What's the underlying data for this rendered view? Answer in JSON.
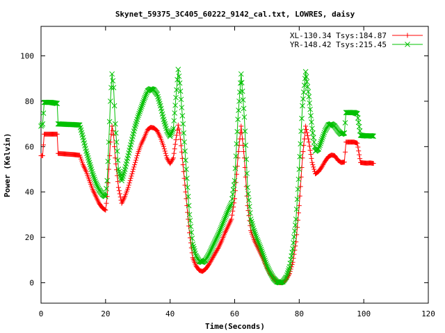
{
  "chart_data": {
    "type": "line",
    "title": "Skynet_59375_3C405_60222_9142_cal.txt, LOWRES, daisy",
    "xlabel": "Time(Seconds)",
    "ylabel": "Power (Kelvin)",
    "xlim": [
      0,
      120
    ],
    "ylim": [
      -9,
      113
    ],
    "xticks": [
      0,
      20,
      40,
      60,
      80,
      100,
      120
    ],
    "yticks": [
      0,
      20,
      40,
      60,
      80,
      100
    ],
    "grid": false,
    "legend_position": "top-right",
    "series": [
      {
        "name": "XL-130.34 Tsys:184.87",
        "color": "#ff0000",
        "marker": "plus",
        "points": [
          [
            0,
            56
          ],
          [
            0.5,
            56
          ],
          [
            1,
            65.5
          ],
          [
            3,
            65.5
          ],
          [
            5,
            65.5
          ],
          [
            5.3,
            57
          ],
          [
            8,
            56.7
          ],
          [
            10,
            56.5
          ],
          [
            12,
            56.2
          ],
          [
            13,
            52
          ],
          [
            14,
            49
          ],
          [
            15,
            45
          ],
          [
            16,
            41
          ],
          [
            17,
            38
          ],
          [
            18,
            35
          ],
          [
            19,
            33
          ],
          [
            20,
            32
          ],
          [
            20.5,
            38
          ],
          [
            21,
            50
          ],
          [
            21.5,
            62
          ],
          [
            22,
            69
          ],
          [
            22.5,
            65
          ],
          [
            23,
            55
          ],
          [
            24,
            42
          ],
          [
            25,
            35
          ],
          [
            26,
            38
          ],
          [
            27,
            42
          ],
          [
            28,
            47
          ],
          [
            29,
            52
          ],
          [
            30,
            57
          ],
          [
            31,
            61
          ],
          [
            32,
            64
          ],
          [
            33,
            67.5
          ],
          [
            34,
            68.5
          ],
          [
            35,
            68.2
          ],
          [
            36,
            67
          ],
          [
            37,
            64
          ],
          [
            38,
            60
          ],
          [
            39,
            55
          ],
          [
            40,
            52.5
          ],
          [
            41,
            55
          ],
          [
            42,
            65
          ],
          [
            42.5,
            69.5
          ],
          [
            43,
            66
          ],
          [
            44,
            52
          ],
          [
            45,
            37
          ],
          [
            46,
            22
          ],
          [
            47,
            11
          ],
          [
            48,
            7.5
          ],
          [
            49,
            5.5
          ],
          [
            50,
            5
          ],
          [
            51,
            6
          ],
          [
            52,
            8
          ],
          [
            53,
            10.5
          ],
          [
            54,
            13
          ],
          [
            55,
            15.5
          ],
          [
            56,
            18.5
          ],
          [
            57,
            22
          ],
          [
            58,
            25
          ],
          [
            59,
            28
          ],
          [
            60,
            37
          ],
          [
            61,
            55
          ],
          [
            62,
            69
          ],
          [
            63,
            55
          ],
          [
            64,
            34
          ],
          [
            65,
            23
          ],
          [
            66,
            19
          ],
          [
            67,
            16
          ],
          [
            68,
            13
          ],
          [
            69,
            10
          ],
          [
            70,
            6.5
          ],
          [
            71,
            4
          ],
          [
            72,
            2
          ],
          [
            73,
            0.5
          ],
          [
            74,
            0
          ],
          [
            75,
            0.2
          ],
          [
            76,
            1.5
          ],
          [
            77,
            4
          ],
          [
            78,
            9
          ],
          [
            79,
            18
          ],
          [
            80,
            34
          ],
          [
            81,
            55
          ],
          [
            82,
            69
          ],
          [
            83,
            62
          ],
          [
            84,
            53
          ],
          [
            85,
            48
          ],
          [
            86,
            49
          ],
          [
            87,
            51
          ],
          [
            88,
            53.5
          ],
          [
            89,
            55.5
          ],
          [
            90,
            56.3
          ],
          [
            91,
            56
          ],
          [
            92,
            54
          ],
          [
            93,
            53
          ],
          [
            94,
            53.2
          ],
          [
            94.5,
            62
          ],
          [
            95,
            62
          ],
          [
            96,
            62
          ],
          [
            97,
            62
          ],
          [
            98,
            61.5
          ],
          [
            99,
            53
          ],
          [
            100,
            52.8
          ],
          [
            101,
            52.7
          ],
          [
            102,
            52.8
          ],
          [
            103,
            52.6
          ]
        ]
      },
      {
        "name": "YR-148.42 Tsys:215.45",
        "color": "#00c000",
        "marker": "cross",
        "points": [
          [
            0,
            69
          ],
          [
            0.5,
            70
          ],
          [
            1,
            79.5
          ],
          [
            3,
            79.5
          ],
          [
            5,
            79
          ],
          [
            5.3,
            70
          ],
          [
            8,
            69.8
          ],
          [
            10,
            69.7
          ],
          [
            12,
            69.5
          ],
          [
            13,
            64
          ],
          [
            14,
            58
          ],
          [
            15,
            53
          ],
          [
            16,
            48
          ],
          [
            17,
            44
          ],
          [
            18,
            41
          ],
          [
            19,
            39
          ],
          [
            20,
            38
          ],
          [
            20.5,
            45
          ],
          [
            21,
            62
          ],
          [
            21.5,
            80
          ],
          [
            22,
            92
          ],
          [
            22.5,
            86
          ],
          [
            23,
            70
          ],
          [
            24,
            50
          ],
          [
            25,
            45
          ],
          [
            26,
            50
          ],
          [
            27,
            56
          ],
          [
            28,
            62
          ],
          [
            29,
            68
          ],
          [
            30,
            73
          ],
          [
            31,
            77
          ],
          [
            32,
            81
          ],
          [
            33,
            84.5
          ],
          [
            34,
            85.5
          ],
          [
            35,
            85
          ],
          [
            36,
            83
          ],
          [
            37,
            78
          ],
          [
            38,
            72
          ],
          [
            39,
            67
          ],
          [
            40,
            64.5
          ],
          [
            41,
            68
          ],
          [
            42,
            85
          ],
          [
            42.5,
            94
          ],
          [
            43,
            88
          ],
          [
            44,
            70
          ],
          [
            45,
            50
          ],
          [
            46,
            30
          ],
          [
            47,
            17
          ],
          [
            48,
            12
          ],
          [
            49,
            9.5
          ],
          [
            50,
            9
          ],
          [
            51,
            10
          ],
          [
            52,
            12.5
          ],
          [
            53,
            15.5
          ],
          [
            54,
            18.5
          ],
          [
            55,
            21.5
          ],
          [
            56,
            25
          ],
          [
            57,
            28.5
          ],
          [
            58,
            32
          ],
          [
            59,
            35
          ],
          [
            60,
            45
          ],
          [
            61,
            72
          ],
          [
            62,
            92
          ],
          [
            63,
            73
          ],
          [
            64,
            42
          ],
          [
            65,
            28
          ],
          [
            66,
            23
          ],
          [
            67,
            19
          ],
          [
            68,
            15.5
          ],
          [
            69,
            11.5
          ],
          [
            70,
            7.5
          ],
          [
            71,
            4.5
          ],
          [
            72,
            2
          ],
          [
            73,
            0.5
          ],
          [
            74,
            0
          ],
          [
            75,
            0.5
          ],
          [
            76,
            2.5
          ],
          [
            77,
            7
          ],
          [
            78,
            15
          ],
          [
            79,
            28
          ],
          [
            80,
            50
          ],
          [
            81,
            78
          ],
          [
            82,
            93
          ],
          [
            83,
            82
          ],
          [
            84,
            68
          ],
          [
            85,
            58
          ],
          [
            86,
            59
          ],
          [
            87,
            63
          ],
          [
            88,
            67
          ],
          [
            89,
            69.5
          ],
          [
            90,
            70
          ],
          [
            91,
            69
          ],
          [
            92,
            67
          ],
          [
            93,
            65.5
          ],
          [
            94,
            66
          ],
          [
            94.5,
            75
          ],
          [
            95,
            75
          ],
          [
            96,
            75
          ],
          [
            97,
            75
          ],
          [
            98,
            74.5
          ],
          [
            99,
            65
          ],
          [
            100,
            64.8
          ],
          [
            101,
            64.7
          ],
          [
            102,
            64.8
          ],
          [
            103,
            64.6
          ]
        ]
      }
    ]
  }
}
